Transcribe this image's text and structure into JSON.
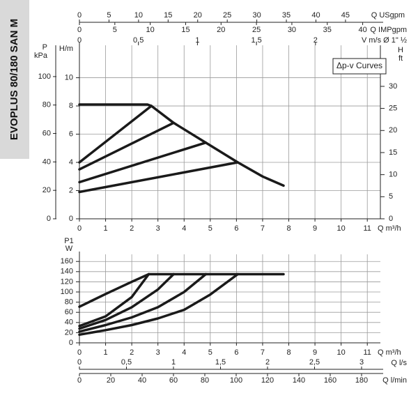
{
  "side_title": "EVOPLUS 80/180 SAN M",
  "chart_data": [
    {
      "type": "line",
      "xlim": [
        0,
        11.5
      ],
      "xticks": [
        0,
        1,
        2,
        3,
        4,
        5,
        6,
        7,
        8,
        9,
        10,
        11
      ],
      "x_label": [
        "Q m³/h"
      ],
      "ylim": [
        0,
        12.3
      ],
      "yticks": [
        0,
        2,
        4,
        6,
        8,
        10
      ],
      "y_label": [
        "H/m"
      ],
      "grid": true,
      "annotation": "Δp-v Curves",
      "extra_axes": [
        {
          "side": "top",
          "label": [
            "Q USgpm"
          ],
          "lim": [
            0,
            50.9
          ],
          "ticks": [
            0,
            5,
            10,
            15,
            20,
            25,
            30,
            35,
            40,
            45
          ]
        },
        {
          "side": "top2",
          "label": [
            "Q IMPgpm"
          ],
          "lim": [
            0,
            42.5
          ],
          "ticks": [
            0,
            5,
            10,
            15,
            20,
            25,
            30,
            35,
            40
          ]
        },
        {
          "side": "top3",
          "label": [
            "V m/s Ø 1\" ½"
          ],
          "lim": [
            0,
            2.55
          ],
          "ticks": [
            0,
            {
              "value": 0.5,
              "label": "0,5"
            },
            1,
            {
              "value": 1.5,
              "label": "1,5"
            },
            2
          ]
        },
        {
          "side": "left",
          "label": [
            "P",
            "kPa"
          ],
          "lim": [
            0,
            122
          ],
          "ticks": [
            0,
            20,
            40,
            60,
            80,
            100
          ]
        },
        {
          "side": "right",
          "label": [
            "H",
            "ft"
          ],
          "lim": [
            0,
            39.3
          ],
          "ticks": [
            0,
            5,
            10,
            15,
            20,
            25,
            30
          ]
        }
      ],
      "series": [
        {
          "color": "#1a1a1a",
          "x": [
            0,
            2.6,
            2.75,
            3.6,
            4.83,
            6.05,
            7,
            7.8
          ],
          "values": [
            8.1,
            8.1,
            8.0,
            6.8,
            5.4,
            4.0,
            3.0,
            2.35
          ]
        },
        {
          "color": "#1a1a1a",
          "x": [
            0,
            2.75
          ],
          "values": [
            4.0,
            8.0
          ]
        },
        {
          "color": "#1a1a1a",
          "x": [
            0,
            3.6
          ],
          "values": [
            3.5,
            6.8
          ]
        },
        {
          "color": "#1a1a1a",
          "x": [
            0,
            4.83
          ],
          "values": [
            2.6,
            5.4
          ]
        },
        {
          "color": "#1a1a1a",
          "x": [
            0,
            6.05
          ],
          "values": [
            1.9,
            4.0
          ]
        }
      ]
    },
    {
      "type": "line",
      "xlim": [
        0,
        11.5
      ],
      "xticks": [
        0,
        1,
        2,
        3,
        4,
        5,
        6,
        7,
        8,
        9,
        10,
        11
      ],
      "x_label": [
        "Q m³/h"
      ],
      "ylim": [
        0,
        174
      ],
      "yticks": [
        0,
        20,
        40,
        60,
        80,
        100,
        120,
        140,
        160
      ],
      "y_label": [
        "P1",
        "W"
      ],
      "grid": true,
      "extra_axes": [
        {
          "side": "bottom2",
          "label": [
            "Q l/s"
          ],
          "lim": [
            0,
            3.2
          ],
          "ticks": [
            0,
            {
              "value": 0.5,
              "label": "0,5"
            },
            1,
            {
              "value": 1.5,
              "label": "1,5"
            },
            2,
            {
              "value": 2.5,
              "label": "2,5"
            },
            3
          ]
        },
        {
          "side": "bottom3",
          "label": [
            "Q l/min"
          ],
          "lim": [
            0,
            192
          ],
          "ticks": [
            0,
            20,
            40,
            60,
            80,
            100,
            120,
            140,
            160,
            180
          ]
        }
      ],
      "series": [
        {
          "color": "#1a1a1a",
          "x": [
            0,
            1,
            2,
            2.65,
            7.8
          ],
          "values": [
            71,
            96,
            120,
            135,
            135
          ]
        },
        {
          "color": "#1a1a1a",
          "x": [
            0,
            1,
            2,
            2.65
          ],
          "values": [
            33,
            52,
            90,
            135
          ]
        },
        {
          "color": "#1a1a1a",
          "x": [
            0,
            1,
            2,
            3,
            3.6
          ],
          "values": [
            28,
            45,
            70,
            105,
            135
          ]
        },
        {
          "color": "#1a1a1a",
          "x": [
            0,
            1,
            2,
            3,
            4,
            4.83
          ],
          "values": [
            22,
            35,
            50,
            70,
            100,
            135
          ]
        },
        {
          "color": "#1a1a1a",
          "x": [
            0,
            1,
            2,
            3,
            4,
            5,
            6.05
          ],
          "values": [
            16,
            25,
            35,
            48,
            65,
            95,
            135
          ]
        }
      ]
    }
  ]
}
